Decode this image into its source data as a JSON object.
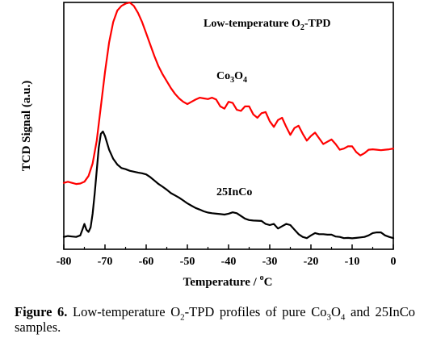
{
  "chart_data": {
    "type": "line",
    "title": "Low-temperature O2-TPD",
    "title_parts": {
      "prefix": "Low-temperature O",
      "sub": "2",
      "suffix": "-TPD"
    },
    "xlabel": "Temperature / °C",
    "xlabel_parts": {
      "prefix": "Temperature / ",
      "sup": "o",
      "suffix": "C"
    },
    "ylabel": "TCD Signal (a.u.)",
    "xlim": [
      -80,
      0
    ],
    "x_ticks": [
      -80,
      -70,
      -60,
      -50,
      -40,
      -30,
      -20,
      -10,
      0
    ],
    "y_tick_labels": "none",
    "grid": false,
    "legend": "none",
    "series": [
      {
        "name": "Co3O4",
        "name_parts": [
          "Co",
          "3",
          "O",
          "4"
        ],
        "color": "#ff0000",
        "x": [
          -81,
          -79,
          -78,
          -77,
          -76,
          -75,
          -74,
          -73,
          -72,
          -71,
          -70,
          -69,
          -68,
          -67,
          -66,
          -65,
          -64,
          -63,
          -62,
          -61,
          -60,
          -59,
          -58,
          -57,
          -56,
          -55,
          -54,
          -53,
          -52,
          -51,
          -50,
          -49,
          -48,
          -47,
          -46,
          -45,
          -44,
          -43,
          -42,
          -41,
          -40,
          -39,
          -38,
          -37,
          -36,
          -35,
          -34,
          -33,
          -32,
          -31,
          -30,
          -29,
          -28,
          -27,
          -26,
          -25,
          -24,
          -23,
          -22,
          -21,
          -20,
          -19,
          -18,
          -17,
          -16,
          -15,
          -14,
          -13,
          -12,
          -11,
          -10,
          -9,
          -8,
          -7,
          -6,
          -5,
          -4,
          -3,
          -2,
          -1,
          0
        ],
        "y": [
          0.245,
          0.25,
          0.245,
          0.24,
          0.242,
          0.25,
          0.275,
          0.33,
          0.43,
          0.58,
          0.73,
          0.86,
          0.95,
          1.0,
          1.02,
          1.03,
          1.035,
          1.02,
          0.99,
          0.95,
          0.9,
          0.85,
          0.8,
          0.755,
          0.72,
          0.69,
          0.66,
          0.635,
          0.615,
          0.6,
          0.59,
          0.6,
          0.61,
          0.618,
          0.615,
          0.612,
          0.618,
          0.61,
          0.58,
          0.57,
          0.6,
          0.595,
          0.565,
          0.56,
          0.58,
          0.58,
          0.545,
          0.53,
          0.55,
          0.555,
          0.515,
          0.49,
          0.52,
          0.53,
          0.49,
          0.455,
          0.485,
          0.495,
          0.46,
          0.43,
          0.45,
          0.465,
          0.44,
          0.415,
          0.425,
          0.435,
          0.415,
          0.39,
          0.395,
          0.405,
          0.405,
          0.38,
          0.365,
          0.375,
          0.39,
          0.392,
          0.39,
          0.388,
          0.39,
          0.392,
          0.395
        ]
      },
      {
        "name": "25InCo",
        "color": "#000000",
        "x": [
          -81,
          -79,
          -78,
          -77,
          -76,
          -75.5,
          -75,
          -74.5,
          -74,
          -73.5,
          -73,
          -72.5,
          -72,
          -71.5,
          -71,
          -70.5,
          -70,
          -69,
          -68,
          -67,
          -66,
          -65,
          -64,
          -63,
          -62,
          -61,
          -60,
          -59,
          -58,
          -57,
          -56,
          -55,
          -54,
          -53,
          -52,
          -51,
          -50,
          -49,
          -48,
          -47,
          -46,
          -45,
          -44,
          -43,
          -42,
          -41,
          -40,
          -39,
          -38,
          -37,
          -36,
          -35,
          -34,
          -33,
          -32,
          -31,
          -30,
          -29,
          -28,
          -27,
          -26,
          -25,
          -24,
          -23,
          -22,
          -21,
          -20,
          -19,
          -18,
          -17,
          -16,
          -15,
          -14,
          -13,
          -12,
          -11,
          -10,
          -9,
          -8,
          -7,
          -6,
          -5,
          -4,
          -3,
          -2,
          -1,
          0
        ],
        "y": [
          0.008,
          0.012,
          0.01,
          0.008,
          0.015,
          0.04,
          0.065,
          0.04,
          0.03,
          0.05,
          0.11,
          0.2,
          0.3,
          0.4,
          0.46,
          0.47,
          0.45,
          0.39,
          0.35,
          0.325,
          0.31,
          0.305,
          0.298,
          0.294,
          0.29,
          0.287,
          0.282,
          0.27,
          0.255,
          0.24,
          0.228,
          0.215,
          0.2,
          0.19,
          0.18,
          0.168,
          0.155,
          0.145,
          0.135,
          0.128,
          0.12,
          0.115,
          0.112,
          0.11,
          0.108,
          0.106,
          0.11,
          0.116,
          0.112,
          0.1,
          0.088,
          0.082,
          0.08,
          0.079,
          0.078,
          0.065,
          0.06,
          0.065,
          0.045,
          0.055,
          0.065,
          0.06,
          0.04,
          0.02,
          0.008,
          0.003,
          0.015,
          0.025,
          0.02,
          0.02,
          0.018,
          0.018,
          0.01,
          0.008,
          0.003,
          0.004,
          0.002,
          0.004,
          0.006,
          0.008,
          0.015,
          0.025,
          0.028,
          0.028,
          0.015,
          0.008,
          0.003
        ]
      }
    ],
    "annotations": [
      {
        "text": "Low-temperature O2-TPD",
        "near": "top-center"
      },
      {
        "text": "Co3O4",
        "near": "red curve, around -37 °C"
      },
      {
        "text": "25InCo",
        "near": "black curve, around -37 °C"
      }
    ]
  },
  "caption": {
    "label": "Figure 6.",
    "text_before": " Low-temperature O",
    "sub1": "2",
    "text_mid": "-TPD profiles of pure ",
    "formula": [
      "Co",
      "3",
      "O",
      "4"
    ],
    "text_after": " and 25InCo samples."
  }
}
